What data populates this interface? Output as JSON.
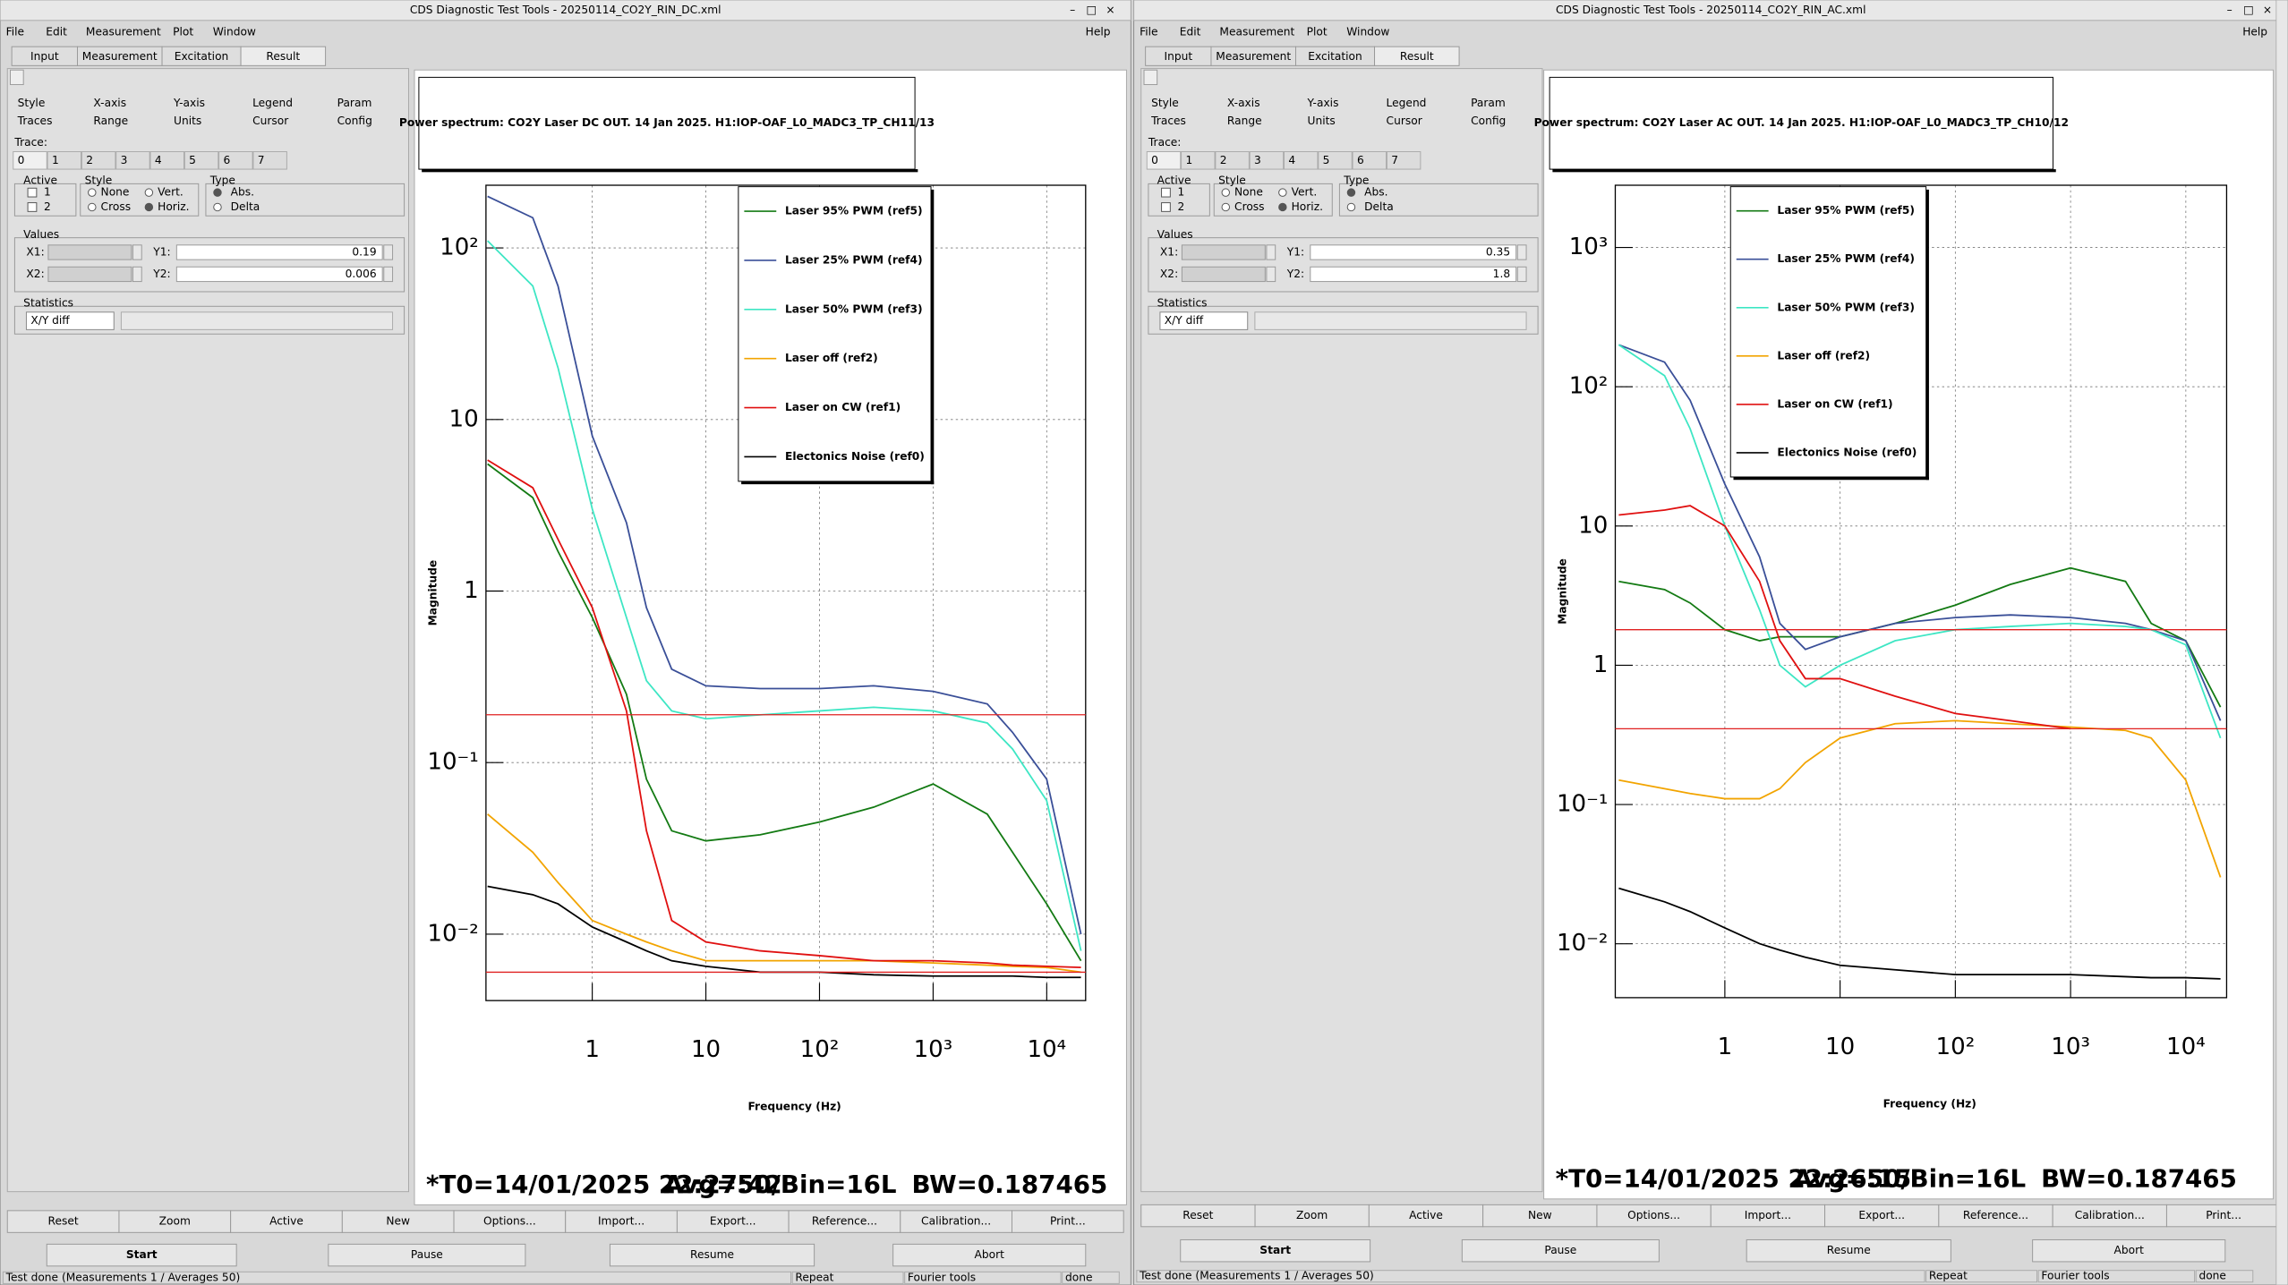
{
  "windows": [
    {
      "title": "CDS Diagnostic Test Tools - 20250114_CO2Y_RIN_DC.xml",
      "menu": [
        "File",
        "Edit",
        "Measurement",
        "Plot",
        "Window"
      ],
      "help": "Help",
      "tabs": [
        "Input",
        "Measurement",
        "Excitation",
        "Result"
      ],
      "subtabs": [
        "Style",
        "X-axis",
        "Y-axis",
        "Legend",
        "Param",
        "Traces",
        "Range",
        "Units",
        "Cursor",
        "Config"
      ],
      "trace_label": "Trace:",
      "traces": [
        "0",
        "1",
        "2",
        "3",
        "4",
        "5",
        "6",
        "7"
      ],
      "active_label": "Active",
      "active": [
        "1",
        "2"
      ],
      "style_label": "Style",
      "styles": [
        "None",
        "Vert.",
        "Cross",
        "Horiz."
      ],
      "type_label": "Type",
      "types": [
        "Abs.",
        "Delta"
      ],
      "values_label": "Values",
      "fields": [
        "X1:",
        "Y1:",
        "X2:",
        "Y2:"
      ],
      "y1": 0.19,
      "y2": 0.006,
      "statistics_label": "Statistics",
      "statistics": "X/Y diff",
      "chart_data": {
        "type": "line",
        "title": "Power spectrum: CO2Y Laser DC OUT. 14 Jan 2025. H1:IOP-OAF_L0_MADC3_TP_CH11/13",
        "xlabel": "Frequency (Hz)",
        "ylabel": "Magnitude",
        "xlog": true,
        "ylog": true,
        "grid": true,
        "xlim": [
          0.116,
          22000
        ],
        "ylim": [
          0.0041,
          232
        ],
        "xticks": [
          1,
          10,
          {
            "value": 100,
            "label": "10²"
          },
          {
            "value": 1000,
            "label": "10³"
          },
          {
            "value": 10000,
            "label": "10⁴"
          }
        ],
        "yticks": [
          {
            "value": 0.01,
            "label": "10⁻²"
          },
          {
            "value": 0.1,
            "label": "10⁻¹"
          },
          1,
          10,
          {
            "value": 100,
            "label": "10²"
          }
        ],
        "x": [
          0.12,
          0.3,
          0.5,
          1,
          2,
          3,
          5,
          10,
          30,
          100,
          300,
          1000,
          3000,
          5000,
          10000,
          20000
        ],
        "series": [
          {
            "name": "Laser 95% PWM (ref5)",
            "color": "#137a13",
            "values": [
              5.5,
              3.5,
              1.7,
              0.7,
              0.25,
              0.08,
              0.04,
              0.035,
              0.038,
              0.045,
              0.055,
              0.075,
              0.05,
              0.03,
              0.015,
              0.007
            ]
          },
          {
            "name": "Laser 25% PWM (ref4)",
            "color": "#3a4f98",
            "values": [
              200,
              150,
              60,
              8,
              2.5,
              0.8,
              0.35,
              0.28,
              0.27,
              0.27,
              0.28,
              0.26,
              0.22,
              0.15,
              0.08,
              0.01
            ]
          },
          {
            "name": "Laser 50% PWM (ref3)",
            "color": "#3ee6c4",
            "values": [
              110,
              60,
              20,
              3,
              0.7,
              0.3,
              0.2,
              0.18,
              0.19,
              0.2,
              0.21,
              0.2,
              0.17,
              0.12,
              0.06,
              0.008
            ]
          },
          {
            "name": "Laser off (ref2)",
            "color": "#f2a400",
            "values": [
              0.05,
              0.03,
              0.02,
              0.012,
              0.01,
              0.009,
              0.008,
              0.007,
              0.007,
              0.007,
              0.007,
              0.0068,
              0.0066,
              0.0065,
              0.0064,
              0.006
            ]
          },
          {
            "name": "Laser on CW (ref1)",
            "color": "#e01010",
            "values": [
              5.8,
              4,
              2,
              0.8,
              0.2,
              0.04,
              0.012,
              0.009,
              0.008,
              0.0075,
              0.007,
              0.007,
              0.0068,
              0.0066,
              0.0065,
              0.0064
            ]
          },
          {
            "name": "Electonics Noise (ref0)",
            "color": "#000000",
            "values": [
              0.019,
              0.017,
              0.015,
              0.011,
              0.009,
              0.008,
              0.007,
              0.0065,
              0.006,
              0.006,
              0.0058,
              0.0057,
              0.0057,
              0.0057,
              0.0056,
              0.0056
            ]
          }
        ]
      },
      "info": [
        "*T0=14/01/2025 22:27:42",
        "Avg=50/Bin=16L",
        "BW=0.187465"
      ],
      "buttons": [
        "Reset",
        "Zoom",
        "Active",
        "New",
        "Options...",
        "Import...",
        "Export...",
        "Reference...",
        "Calibration...",
        "Print..."
      ],
      "run_buttons": [
        "Start",
        "Pause",
        "Resume",
        "Abort"
      ],
      "status": [
        "Test done (Measurements 1 / Averages 50)",
        "Repeat",
        "Fourier tools",
        "done"
      ]
    },
    {
      "title": "CDS Diagnostic Test Tools - 20250114_CO2Y_RIN_AC.xml",
      "menu": [
        "File",
        "Edit",
        "Measurement",
        "Plot",
        "Window"
      ],
      "help": "Help",
      "tabs": [
        "Input",
        "Measurement",
        "Excitation",
        "Result"
      ],
      "subtabs": [
        "Style",
        "X-axis",
        "Y-axis",
        "Legend",
        "Param",
        "Traces",
        "Range",
        "Units",
        "Cursor",
        "Config"
      ],
      "trace_label": "Trace:",
      "traces": [
        "0",
        "1",
        "2",
        "3",
        "4",
        "5",
        "6",
        "7"
      ],
      "active_label": "Active",
      "active": [
        "1",
        "2"
      ],
      "style_label": "Style",
      "styles": [
        "None",
        "Vert.",
        "Cross",
        "Horiz."
      ],
      "type_label": "Type",
      "types": [
        "Abs.",
        "Delta"
      ],
      "values_label": "Values",
      "fields": [
        "X1:",
        "Y1:",
        "X2:",
        "Y2:"
      ],
      "y1": 0.35,
      "y2": 1.8,
      "statistics_label": "Statistics",
      "statistics": "X/Y diff",
      "chart_data": {
        "type": "line",
        "title": "Power spectrum: CO2Y Laser AC OUT. 14 Jan 2025. H1:IOP-OAF_L0_MADC3_TP_CH10/12",
        "xlabel": "Frequency (Hz)",
        "ylabel": "Magnitude",
        "xlog": true,
        "ylog": true,
        "grid": true,
        "xlim": [
          0.112,
          22600
        ],
        "ylim": [
          0.0041,
          2800
        ],
        "xticks": [
          1,
          10,
          {
            "value": 100,
            "label": "10²"
          },
          {
            "value": 1000,
            "label": "10³"
          },
          {
            "value": 10000,
            "label": "10⁴"
          }
        ],
        "yticks": [
          {
            "value": 0.01,
            "label": "10⁻²"
          },
          {
            "value": 0.1,
            "label": "10⁻¹"
          },
          1,
          10,
          {
            "value": 100,
            "label": "10²"
          },
          {
            "value": 1000,
            "label": "10³"
          }
        ],
        "x": [
          0.12,
          0.3,
          0.5,
          1,
          2,
          3,
          5,
          10,
          30,
          100,
          300,
          1000,
          3000,
          5000,
          10000,
          20000
        ],
        "series": [
          {
            "name": "Laser 95% PWM (ref5)",
            "color": "#137a13",
            "values": [
              4,
              3.5,
              2.8,
              1.8,
              1.5,
              1.6,
              1.6,
              1.6,
              2,
              2.7,
              3.8,
              5,
              4,
              2,
              1.5,
              0.5
            ]
          },
          {
            "name": "Laser 25% PWM (ref4)",
            "color": "#3a4f98",
            "values": [
              200,
              150,
              80,
              20,
              6,
              2,
              1.3,
              1.6,
              2,
              2.2,
              2.3,
              2.2,
              2,
              1.8,
              1.5,
              0.4
            ]
          },
          {
            "name": "Laser 50% PWM (ref3)",
            "color": "#3ee6c4",
            "values": [
              200,
              120,
              50,
              10,
              2.5,
              1,
              0.7,
              1,
              1.5,
              1.8,
              1.9,
              2,
              1.9,
              1.8,
              1.4,
              0.3
            ]
          },
          {
            "name": "Laser off (ref2)",
            "color": "#f2a400",
            "values": [
              0.15,
              0.13,
              0.12,
              0.11,
              0.11,
              0.13,
              0.2,
              0.3,
              0.38,
              0.4,
              0.38,
              0.36,
              0.34,
              0.3,
              0.15,
              0.03
            ]
          },
          {
            "name": "Laser on CW (ref1)",
            "color": "#e01010",
            "values": [
              12,
              13,
              14,
              10,
              4,
              1.5,
              0.8,
              0.8,
              0.6,
              0.45,
              0.4,
              0.35,
              null,
              null,
              null,
              null
            ]
          },
          {
            "name": "Electonics Noise (ref0)",
            "color": "#000000",
            "values": [
              0.025,
              0.02,
              0.017,
              0.013,
              0.01,
              0.009,
              0.008,
              0.007,
              0.0065,
              0.006,
              0.006,
              0.006,
              0.0058,
              0.0057,
              0.0057,
              0.0056
            ]
          }
        ]
      },
      "info": [
        "*T0=14/01/2025 22:26:15",
        "Avg=50/Bin=16L",
        "BW=0.187465"
      ],
      "buttons": [
        "Reset",
        "Zoom",
        "Active",
        "New",
        "Options...",
        "Import...",
        "Export...",
        "Reference...",
        "Calibration...",
        "Print..."
      ],
      "run_buttons": [
        "Start",
        "Pause",
        "Resume",
        "Abort"
      ],
      "status": [
        "Test done (Measurements 1 / Averages 50)",
        "Repeat",
        "Fourier tools",
        "done"
      ]
    }
  ]
}
